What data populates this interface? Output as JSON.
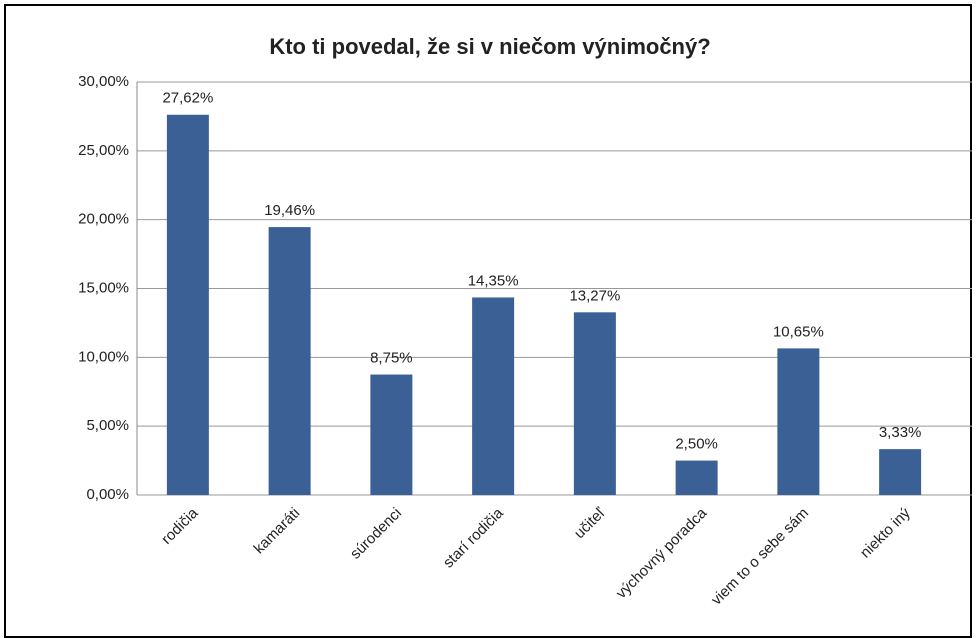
{
  "chart_data": {
    "type": "bar",
    "title": "Kto ti povedal, že si v niečom výnimočný?",
    "categories": [
      "rodičia",
      "kamaráti",
      "súrodenci",
      "starí rodičia",
      "učiteľ",
      "výchovný poradca",
      "viem to o sebe sám",
      "niekto iný"
    ],
    "values": [
      27.62,
      19.46,
      8.75,
      14.35,
      13.27,
      2.5,
      10.65,
      3.33
    ],
    "value_labels": [
      "27,62%",
      "19,46%",
      "8,75%",
      "14,35%",
      "13,27%",
      "2,50%",
      "10,65%",
      "3,33%"
    ],
    "color": "#3a6096",
    "ylim": [
      0,
      30
    ],
    "yticks": [
      {
        "value": 0,
        "label": "0,00%"
      },
      {
        "value": 5,
        "label": "5,00%"
      },
      {
        "value": 10,
        "label": "10,00%"
      },
      {
        "value": 15,
        "label": "15,00%"
      },
      {
        "value": 20,
        "label": "20,00%"
      },
      {
        "value": 25,
        "label": "25,00%"
      },
      {
        "value": 30,
        "label": "30,00%"
      }
    ],
    "grid": true
  }
}
